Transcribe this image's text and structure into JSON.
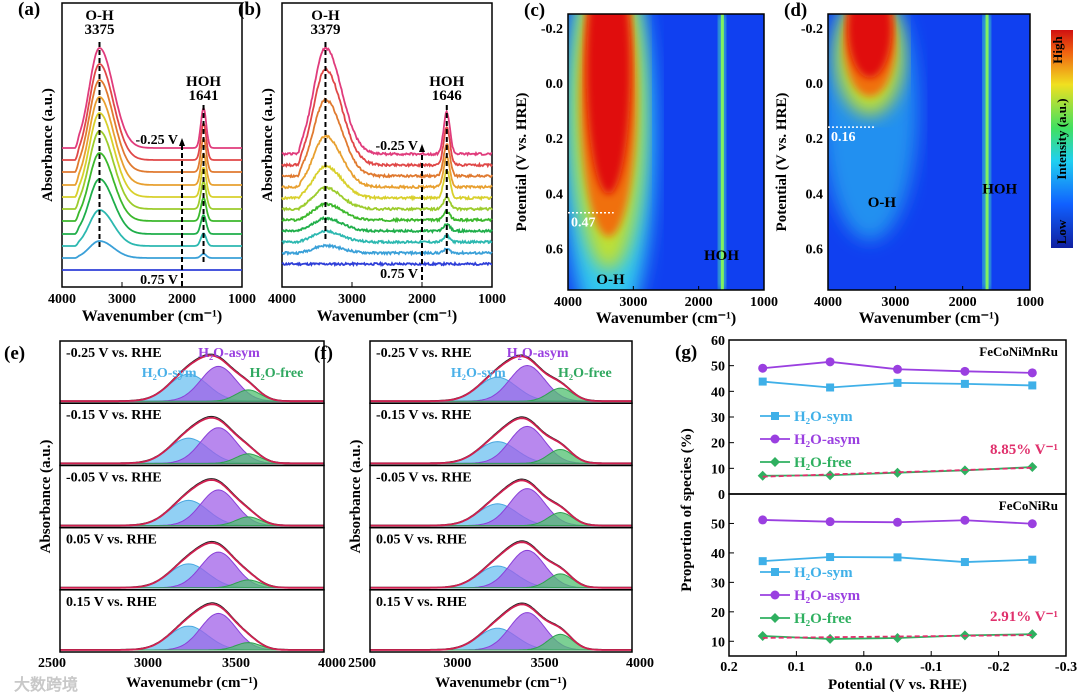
{
  "chart_data": [
    {
      "id": "a",
      "type": "line",
      "panel_label": "(a)",
      "xlabel": "Wavenumber (cm⁻¹)",
      "ylabel": "Absorbance (a.u.)",
      "xlim": [
        4000,
        1000
      ],
      "xticks": [
        "4000",
        "3000",
        "2000",
        "1000"
      ],
      "annotations": {
        "peak1_name": "O-H",
        "peak1_pos": "3375",
        "peak2_name": "HOH",
        "peak2_pos": "1641",
        "top": "-0.25 V",
        "bottom": "0.75 V"
      },
      "peaks_cm": [
        3375,
        1641
      ],
      "oh_amplitude": [
        0,
        0.17,
        0.36,
        0.55,
        0.68,
        0.78,
        0.84,
        0.88,
        0.92,
        0.96,
        1.0
      ],
      "hoh_amplitude": [
        0,
        0.04,
        0.12,
        0.18,
        0.22,
        0.26,
        0.28,
        0.3,
        0.32,
        0.35,
        0.38
      ],
      "colors": [
        "#2f3fd8",
        "#3aa0d8",
        "#2cb8b0",
        "#1fae4a",
        "#3cb82c",
        "#9ccc2c",
        "#d8d02c",
        "#e8a030",
        "#e07a30",
        "#e04848",
        "#e03c7c"
      ]
    },
    {
      "id": "b",
      "type": "line",
      "panel_label": "(b)",
      "xlabel": "Wavenumber (cm⁻¹)",
      "ylabel": "Absorbance (a.u.)",
      "xlim": [
        4000,
        1000
      ],
      "xticks": [
        "4000",
        "3000",
        "2000",
        "1000"
      ],
      "annotations": {
        "peak1_name": "O-H",
        "peak1_pos": "3379",
        "peak2_name": "HOH",
        "peak2_pos": "1646",
        "top": "-0.25 V",
        "bottom": "0.75 V"
      },
      "peaks_cm": [
        3379,
        1646
      ],
      "oh_amplitude": [
        0,
        0.07,
        0.1,
        0.12,
        0.15,
        0.2,
        0.3,
        0.48,
        0.72,
        0.9,
        1.0
      ],
      "hoh_amplitude": [
        0,
        0.04,
        0.06,
        0.07,
        0.09,
        0.12,
        0.28,
        0.3,
        0.32,
        0.38,
        0.42
      ],
      "colors": [
        "#2f3fd8",
        "#3aa0d8",
        "#2cb8b0",
        "#1fae4a",
        "#3cb82c",
        "#9ccc2c",
        "#d8d02c",
        "#e8a030",
        "#e07a30",
        "#e04848",
        "#e03c7c"
      ]
    },
    {
      "id": "c",
      "type": "heatmap",
      "panel_label": "(c)",
      "xlabel": "Wavenumber (cm⁻¹)",
      "ylabel": "Potential (V vs. HRE)",
      "xlim": [
        4000,
        1000
      ],
      "ylim": [
        -0.25,
        0.75
      ],
      "xticks": [
        "4000",
        "3000",
        "2000",
        "1000"
      ],
      "yticks": [
        "-0.2",
        "0.0",
        "0.2",
        "0.4",
        "0.6"
      ],
      "labels": {
        "oh": "O-H",
        "hoh": "HOH",
        "onset": "0.47"
      },
      "onset_potential": 0.47
    },
    {
      "id": "d",
      "type": "heatmap",
      "panel_label": "(d)",
      "xlabel": "Wavenumber (cm⁻¹)",
      "ylabel": "Potential (V vs. HRE)",
      "xlim": [
        4000,
        1000
      ],
      "ylim": [
        -0.25,
        0.75
      ],
      "xticks": [
        "4000",
        "3000",
        "2000",
        "1000"
      ],
      "yticks": [
        "-0.2",
        "0.0",
        "0.2",
        "0.4",
        "0.6"
      ],
      "labels": {
        "oh": "O-H",
        "hoh": "HOH",
        "onset": "0.16"
      },
      "onset_potential": 0.16,
      "colorbar": {
        "title": "Intensity (a.u.)",
        "high": "High",
        "low": "Low"
      }
    },
    {
      "id": "e",
      "type": "area",
      "panel_label": "(e)",
      "xlabel": "Wavenumebr (cm⁻¹)",
      "ylabel": "Absorbance (a.u.)",
      "xlim": [
        2500,
        4000
      ],
      "xticks": [
        "2500",
        "3000",
        "3500",
        "4000"
      ],
      "components": [
        "H₂O-sym",
        "H₂O-asym",
        "H₂O-free"
      ],
      "centers_cm": [
        3230,
        3400,
        3570
      ],
      "subpanels": [
        {
          "label": "-0.25 V vs. RHE",
          "amps": [
            0.62,
            0.8,
            0.26
          ]
        },
        {
          "label": "-0.15 V vs. RHE",
          "amps": [
            0.58,
            0.82,
            0.22
          ]
        },
        {
          "label": "-0.05 V vs. RHE",
          "amps": [
            0.58,
            0.82,
            0.2
          ]
        },
        {
          "label": "0.05 V vs. RHE",
          "amps": [
            0.55,
            0.82,
            0.18
          ]
        },
        {
          "label": "0.15 V vs. RHE",
          "amps": [
            0.55,
            0.84,
            0.17
          ]
        }
      ]
    },
    {
      "id": "f",
      "type": "area",
      "panel_label": "(f)",
      "xlabel": "Wavenumebr (cm⁻¹)",
      "ylabel": "Absorbance (a.u.)",
      "xlim": [
        2500,
        4000
      ],
      "xticks": [
        "2500",
        "3000",
        "3500",
        "4000"
      ],
      "components": [
        "H₂O-sym",
        "H₂O-asym",
        "H₂O-free"
      ],
      "centers_cm": [
        3230,
        3400,
        3590
      ],
      "subpanels": [
        {
          "label": "-0.25 V vs. RHE",
          "amps": [
            0.55,
            0.82,
            0.3
          ]
        },
        {
          "label": "-0.15 V vs. RHE",
          "amps": [
            0.5,
            0.85,
            0.32
          ]
        },
        {
          "label": "-0.05 V vs. RHE",
          "amps": [
            0.5,
            0.85,
            0.3
          ]
        },
        {
          "label": "0.05 V vs. RHE",
          "amps": [
            0.5,
            0.86,
            0.32
          ]
        },
        {
          "label": "0.15 V vs. RHE",
          "amps": [
            0.5,
            0.86,
            0.36
          ]
        }
      ]
    },
    {
      "id": "g",
      "type": "line",
      "panel_label": "(g)",
      "xlabel": "Potential (V vs. RHE)",
      "ylabel": "Proportion of species (%)",
      "xlim": [
        0.2,
        -0.3
      ],
      "xticks": [
        "0.2",
        "0.1",
        "0.0",
        "-0.1",
        "-0.2",
        "-0.3"
      ],
      "x": [
        0.15,
        0.05,
        -0.05,
        -0.15,
        -0.25
      ],
      "subplots": [
        {
          "title": "FeCoNiMnRu",
          "ylim": [
            0,
            60
          ],
          "yticks": [
            "0",
            "10",
            "20",
            "30",
            "40",
            "50",
            "60"
          ],
          "series": [
            {
              "name": "H₂O-sym",
              "color": "#3fb0e8",
              "marker": "square",
              "values": [
                43.8,
                41.5,
                43.3,
                42.9,
                42.3
              ]
            },
            {
              "name": "H₂O-asym",
              "color": "#9a3fe0",
              "marker": "circle",
              "values": [
                49.0,
                51.5,
                48.6,
                47.8,
                47.2
              ]
            },
            {
              "name": "H₂O-free",
              "color": "#2fb060",
              "marker": "diamond",
              "values": [
                7.1,
                7.3,
                8.3,
                9.2,
                10.5
              ]
            }
          ],
          "fit_label": "8.85% V⁻¹"
        },
        {
          "title": "FeCoNiRu",
          "ylim": [
            5,
            60
          ],
          "yticks": [
            "10",
            "20",
            "30",
            "40",
            "50"
          ],
          "series": [
            {
              "name": "H₂O-sym",
              "color": "#3fb0e8",
              "marker": "square",
              "values": [
                37.2,
                38.6,
                38.5,
                36.9,
                37.7
              ]
            },
            {
              "name": "H₂O-asym",
              "color": "#9a3fe0",
              "marker": "circle",
              "values": [
                51.2,
                50.6,
                50.4,
                51.1,
                49.9
              ]
            },
            {
              "name": "H₂O-free",
              "color": "#2fb060",
              "marker": "diamond",
              "values": [
                11.8,
                10.8,
                11.1,
                12.0,
                12.4
              ]
            }
          ],
          "fit_label": "2.91% V⁻¹"
        }
      ],
      "fit_color": "#e0306c"
    }
  ],
  "watermark": "大数跨境"
}
